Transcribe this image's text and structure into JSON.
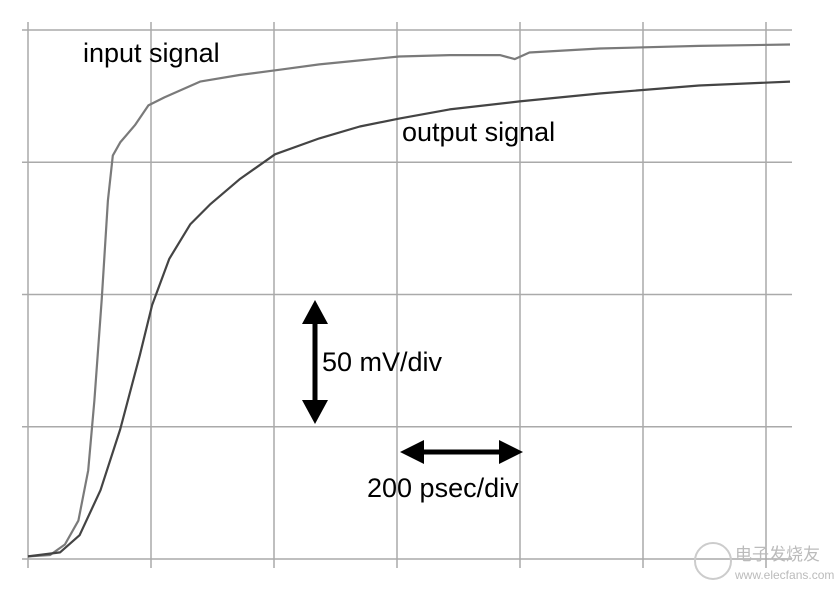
{
  "chart_data": {
    "type": "line",
    "annotations": [
      "input signal",
      "output signal",
      "50 mV/div",
      "200 psec/div"
    ],
    "watermark": [
      "电子发烧友",
      "www.elecfans.com"
    ],
    "xlim": [
      0,
      6.2
    ],
    "ylim": [
      0,
      4
    ],
    "series": [
      {
        "name": "input signal",
        "color": "#7a7a7a",
        "x": [
          0,
          0.18,
          0.3,
          0.41,
          0.49,
          0.54,
          0.6,
          0.65,
          0.69,
          0.75,
          0.87,
          0.98,
          1.11,
          1.4,
          1.72,
          2.05,
          2.37,
          2.7,
          3.02,
          3.43,
          3.84,
          3.96,
          4.08,
          4.65,
          5.46,
          6.2
        ],
        "values": [
          0.02,
          0.03,
          0.11,
          0.29,
          0.67,
          1.2,
          1.96,
          2.71,
          3.05,
          3.15,
          3.28,
          3.43,
          3.49,
          3.61,
          3.66,
          3.7,
          3.74,
          3.77,
          3.8,
          3.81,
          3.81,
          3.78,
          3.83,
          3.86,
          3.88,
          3.89
        ]
      },
      {
        "name": "output signal",
        "color": "#444444",
        "x": [
          0,
          0.26,
          0.42,
          0.59,
          0.75,
          0.91,
          1.01,
          1.15,
          1.32,
          1.48,
          1.72,
          2.01,
          2.37,
          2.7,
          3.02,
          3.43,
          4.0,
          4.65,
          5.46,
          6.2
        ],
        "values": [
          0.02,
          0.05,
          0.18,
          0.52,
          0.98,
          1.54,
          1.92,
          2.27,
          2.53,
          2.68,
          2.87,
          3.06,
          3.18,
          3.27,
          3.33,
          3.4,
          3.46,
          3.52,
          3.58,
          3.61
        ]
      }
    ]
  }
}
